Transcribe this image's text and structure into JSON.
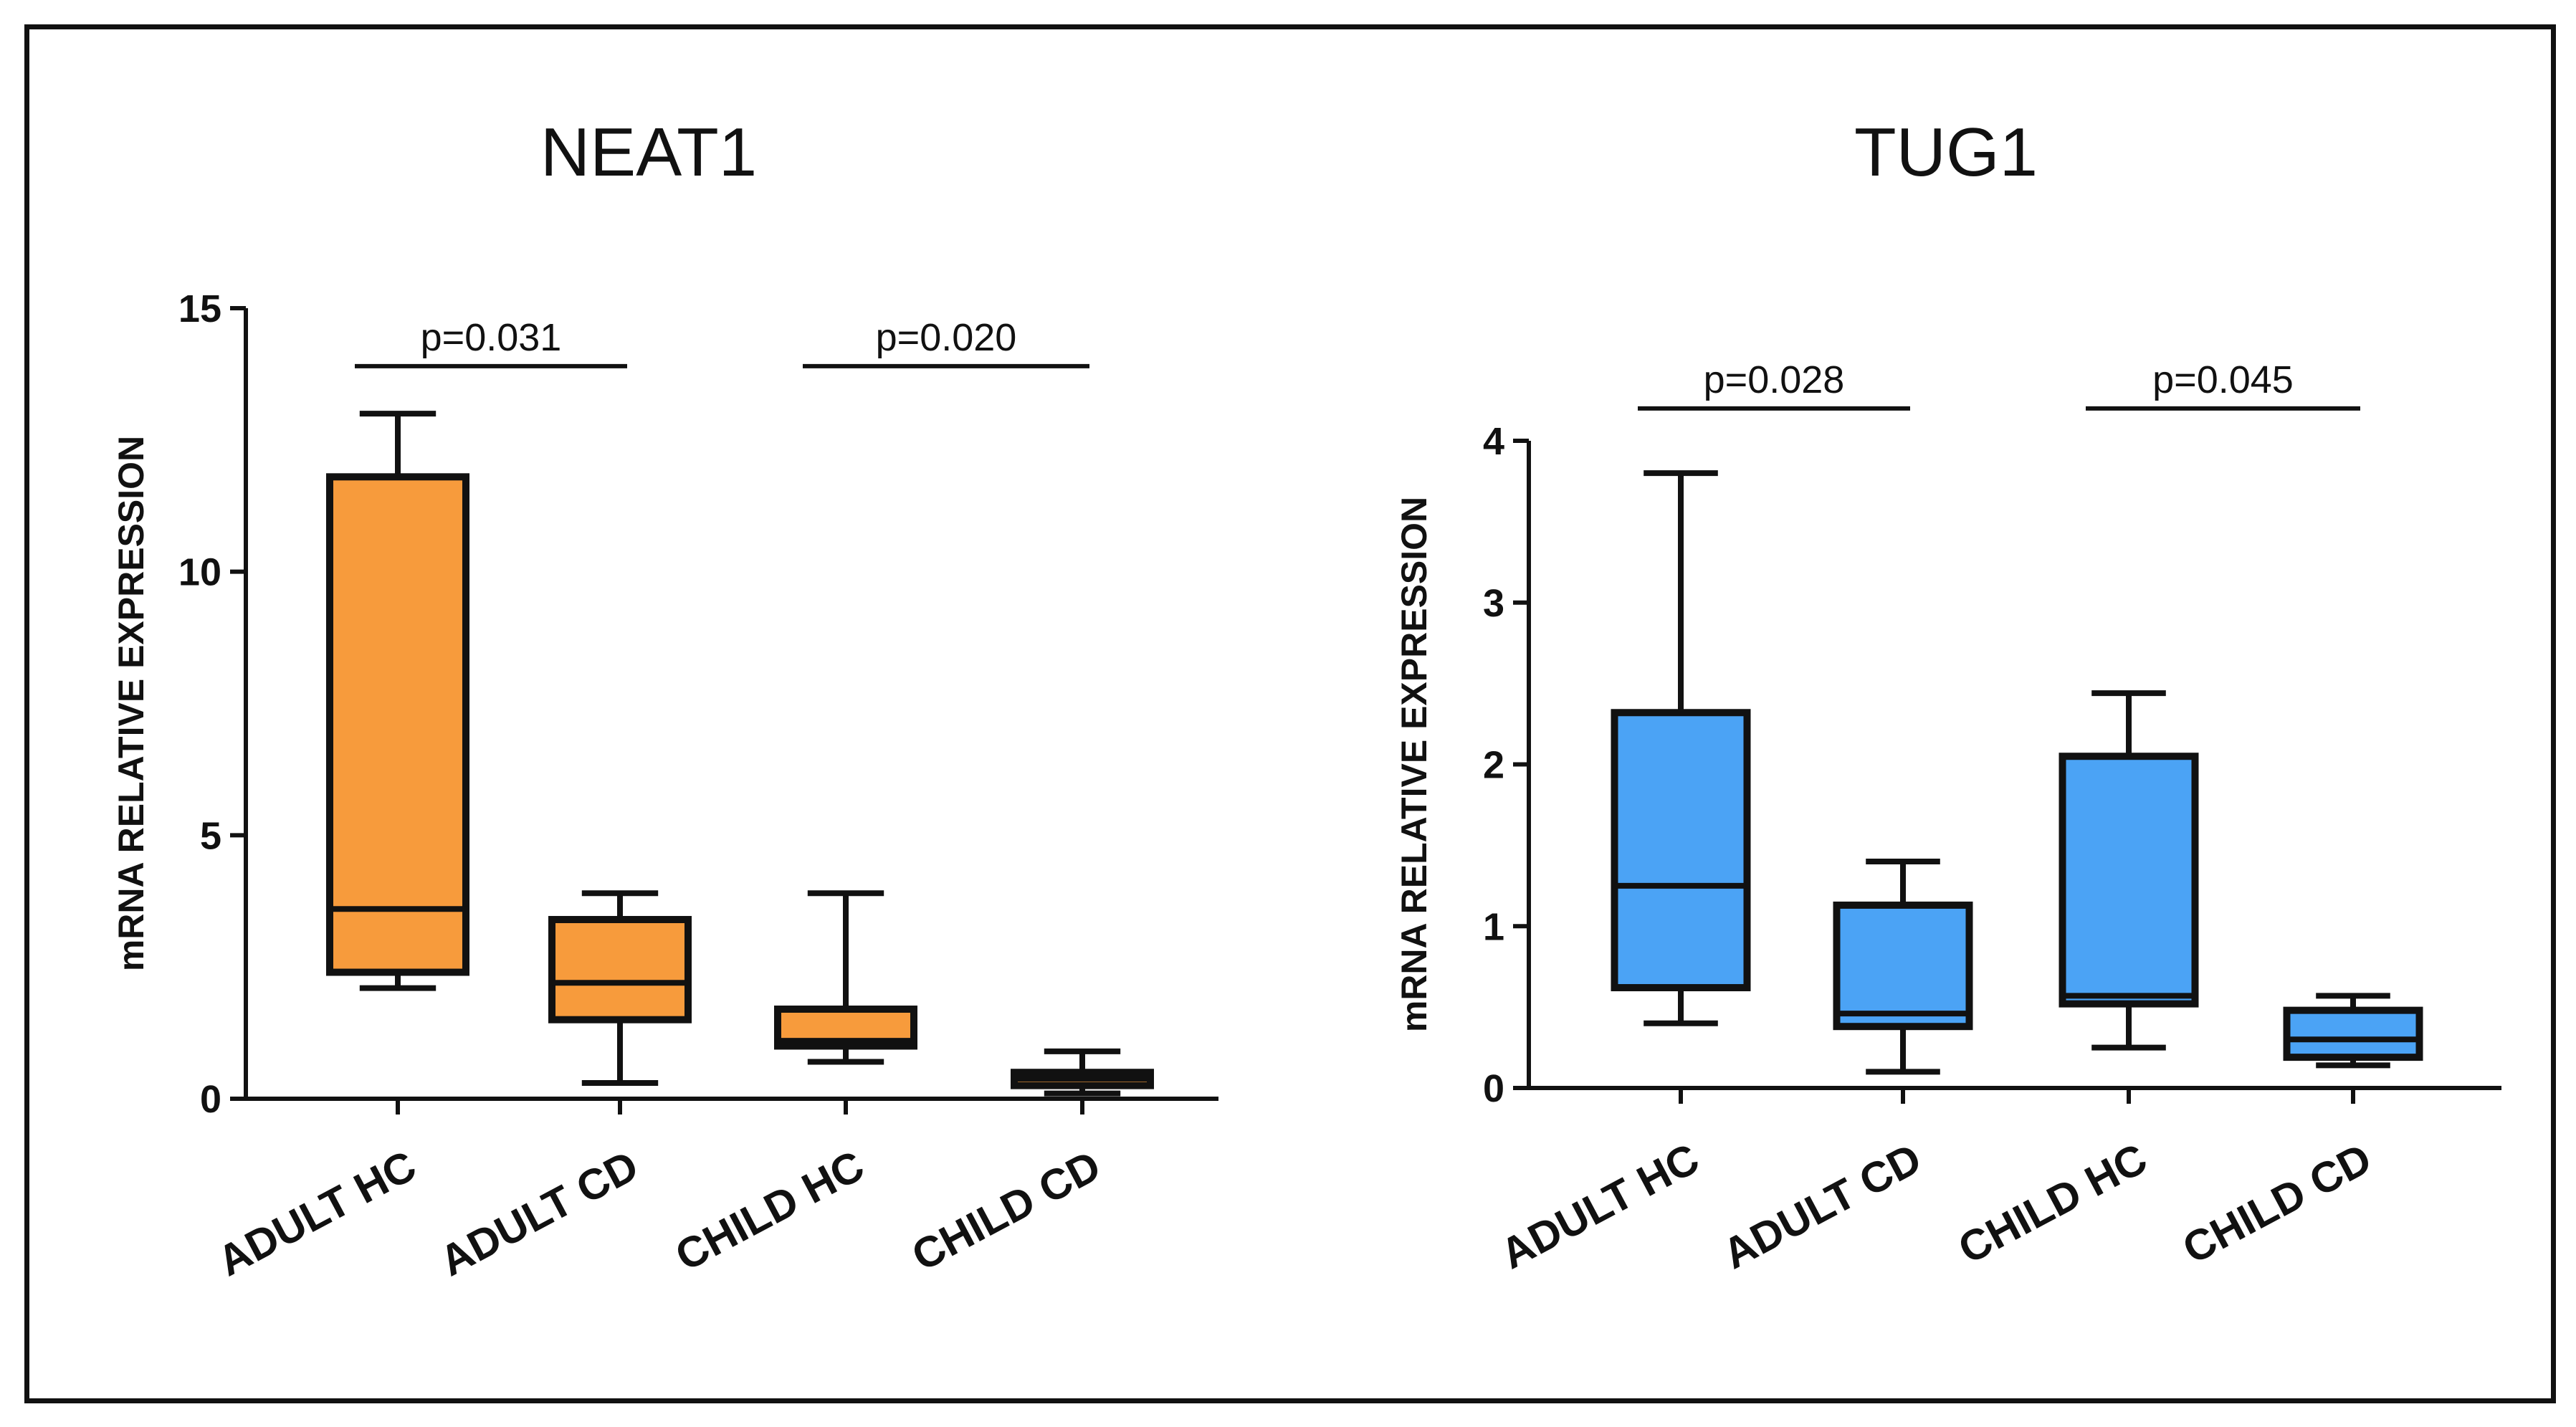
{
  "chart_data": [
    {
      "type": "box",
      "title": "NEAT1",
      "ylabel": "mRNA RELATIVE EXPRESSION",
      "xlabel": "",
      "ylim": [
        0,
        15
      ],
      "yticks": [
        0,
        5,
        10,
        15
      ],
      "categories": [
        "ADULT HC",
        "ADULT CD",
        "CHILD HC",
        "CHILD CD"
      ],
      "color": "#F79B3C",
      "boxes": [
        {
          "min": 2.1,
          "q1": 2.4,
          "median": 3.6,
          "q3": 11.8,
          "max": 13.0
        },
        {
          "min": 0.3,
          "q1": 1.5,
          "median": 2.2,
          "q3": 3.4,
          "max": 3.9
        },
        {
          "min": 0.7,
          "q1": 1.0,
          "median": 1.1,
          "q3": 1.7,
          "max": 3.9
        },
        {
          "min": 0.1,
          "q1": 0.25,
          "median": 0.38,
          "q3": 0.5,
          "max": 0.9
        }
      ],
      "comparisons": [
        {
          "groups": [
            0,
            1
          ],
          "label": "p=0.031",
          "y": 13.9
        },
        {
          "groups": [
            2,
            3
          ],
          "label": "p=0.020",
          "y": 13.9
        }
      ]
    },
    {
      "type": "box",
      "title": "TUG1",
      "ylabel": "mRNA RELATIVE EXPRESSION",
      "xlabel": "",
      "ylim": [
        0,
        4
      ],
      "yticks": [
        0,
        1,
        2,
        3,
        4
      ],
      "categories": [
        "ADULT HC",
        "ADULT CD",
        "CHILD HC",
        "CHILD CD"
      ],
      "color": "#4BA3F5",
      "boxes": [
        {
          "min": 0.4,
          "q1": 0.62,
          "median": 1.25,
          "q3": 2.32,
          "max": 3.8
        },
        {
          "min": 0.1,
          "q1": 0.38,
          "median": 0.46,
          "q3": 1.13,
          "max": 1.4
        },
        {
          "min": 0.25,
          "q1": 0.52,
          "median": 0.57,
          "q3": 2.05,
          "max": 2.44
        },
        {
          "min": 0.14,
          "q1": 0.19,
          "median": 0.3,
          "q3": 0.48,
          "max": 0.57
        }
      ],
      "comparisons": [
        {
          "groups": [
            0,
            1
          ],
          "label": "p=0.028",
          "y": 4.2
        },
        {
          "groups": [
            2,
            3
          ],
          "label": "p=0.045",
          "y": 4.2
        }
      ]
    }
  ]
}
